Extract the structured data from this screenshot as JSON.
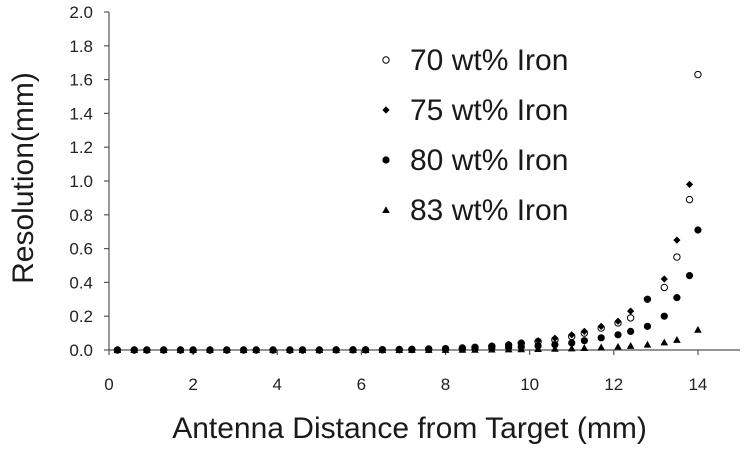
{
  "chart_data": {
    "type": "scatter",
    "xlabel": "Antenna Distance from Target (mm)",
    "ylabel": "Resolution(mm)",
    "xlim": [
      0,
      15
    ],
    "ylim": [
      0,
      2.0
    ],
    "x_ticks": [
      "0",
      "2",
      "4",
      "6",
      "8",
      "10",
      "12",
      "14"
    ],
    "y_ticks": [
      "0.0",
      "0.2",
      "0.4",
      "0.6",
      "0.8",
      "1.0",
      "1.2",
      "1.4",
      "1.6",
      "1.8",
      "2.0"
    ],
    "grid": false,
    "legend_position": "top-right",
    "series": [
      {
        "name": "70 wt% Iron",
        "marker": "open-circle",
        "color": "#000000",
        "x": [
          0.2,
          0.6,
          0.9,
          1.3,
          1.7,
          2.0,
          2.4,
          2.8,
          3.2,
          3.5,
          3.9,
          4.3,
          4.6,
          5.0,
          5.4,
          5.8,
          6.1,
          6.5,
          6.9,
          7.2,
          7.6,
          8.0,
          8.4,
          8.7,
          9.1,
          9.5,
          9.8,
          10.2,
          10.6,
          11.0,
          11.3,
          11.7,
          12.1,
          12.4,
          12.8,
          13.2,
          13.5,
          13.8,
          14.0
        ],
        "y": [
          0,
          0,
          0,
          0,
          0,
          0,
          0,
          0,
          0,
          0,
          0,
          0,
          0,
          0,
          0.001,
          0.001,
          0.001,
          0.002,
          0.003,
          0.004,
          0.006,
          0.008,
          0.012,
          0.016,
          0.022,
          0.03,
          0.04,
          0.05,
          0.06,
          0.08,
          0.1,
          0.13,
          0.16,
          0.19,
          0.3,
          0.37,
          0.55,
          0.89,
          1.63
        ]
      },
      {
        "name": "75 wt% Iron",
        "marker": "diamond",
        "color": "#000000",
        "x": [
          0.2,
          0.6,
          0.9,
          1.3,
          1.7,
          2.0,
          2.4,
          2.8,
          3.2,
          3.5,
          3.9,
          4.3,
          4.6,
          5.0,
          5.4,
          5.8,
          6.1,
          6.5,
          6.9,
          7.2,
          7.6,
          8.0,
          8.4,
          8.7,
          9.1,
          9.5,
          9.8,
          10.2,
          10.6,
          11.0,
          11.3,
          11.7,
          12.1,
          12.4,
          12.8,
          13.2,
          13.5,
          13.8
        ],
        "y": [
          0,
          0,
          0,
          0,
          0,
          0,
          0,
          0,
          0,
          0,
          0,
          0,
          0,
          0.001,
          0.001,
          0.001,
          0.002,
          0.003,
          0.004,
          0.005,
          0.007,
          0.01,
          0.013,
          0.017,
          0.025,
          0.033,
          0.043,
          0.055,
          0.07,
          0.09,
          0.11,
          0.14,
          0.17,
          0.23,
          0.3,
          0.42,
          0.65,
          0.98
        ]
      },
      {
        "name": "80 wt% Iron",
        "marker": "filled-circle",
        "color": "#000000",
        "x": [
          0.2,
          0.6,
          0.9,
          1.3,
          1.7,
          2.0,
          2.4,
          2.8,
          3.2,
          3.5,
          3.9,
          4.3,
          4.6,
          5.0,
          5.4,
          5.8,
          6.1,
          6.5,
          6.9,
          7.2,
          7.6,
          8.0,
          8.4,
          8.7,
          9.1,
          9.5,
          9.8,
          10.2,
          10.6,
          11.0,
          11.3,
          11.7,
          12.1,
          12.4,
          12.8,
          13.2,
          13.5,
          13.8,
          14.0
        ],
        "y": [
          0,
          0,
          0,
          0,
          0,
          0,
          0,
          0,
          0,
          0,
          0,
          0,
          0,
          0,
          0,
          0.001,
          0.001,
          0.001,
          0.002,
          0.002,
          0.003,
          0.004,
          0.005,
          0.007,
          0.01,
          0.014,
          0.018,
          0.024,
          0.032,
          0.042,
          0.055,
          0.072,
          0.09,
          0.11,
          0.14,
          0.2,
          0.31,
          0.44,
          0.71
        ]
      },
      {
        "name": "83 wt% Iron",
        "marker": "triangle",
        "color": "#000000",
        "x": [
          0.2,
          0.6,
          0.9,
          1.3,
          1.7,
          2.0,
          2.4,
          2.8,
          3.2,
          3.5,
          3.9,
          4.3,
          4.6,
          5.0,
          5.4,
          5.8,
          6.1,
          6.5,
          6.9,
          7.2,
          7.6,
          8.0,
          8.4,
          8.7,
          9.1,
          9.5,
          9.8,
          10.2,
          10.6,
          11.0,
          11.3,
          11.7,
          12.1,
          12.4,
          12.8,
          13.2,
          13.5,
          14.0
        ],
        "y": [
          0,
          0,
          0,
          0,
          0,
          0,
          0,
          0,
          0,
          0,
          0,
          0,
          0,
          0,
          0,
          0,
          0,
          0,
          0,
          0.001,
          0.001,
          0.001,
          0.002,
          0.002,
          0.003,
          0.004,
          0.005,
          0.006,
          0.008,
          0.01,
          0.012,
          0.016,
          0.02,
          0.025,
          0.032,
          0.045,
          0.06,
          0.12
        ]
      }
    ]
  }
}
